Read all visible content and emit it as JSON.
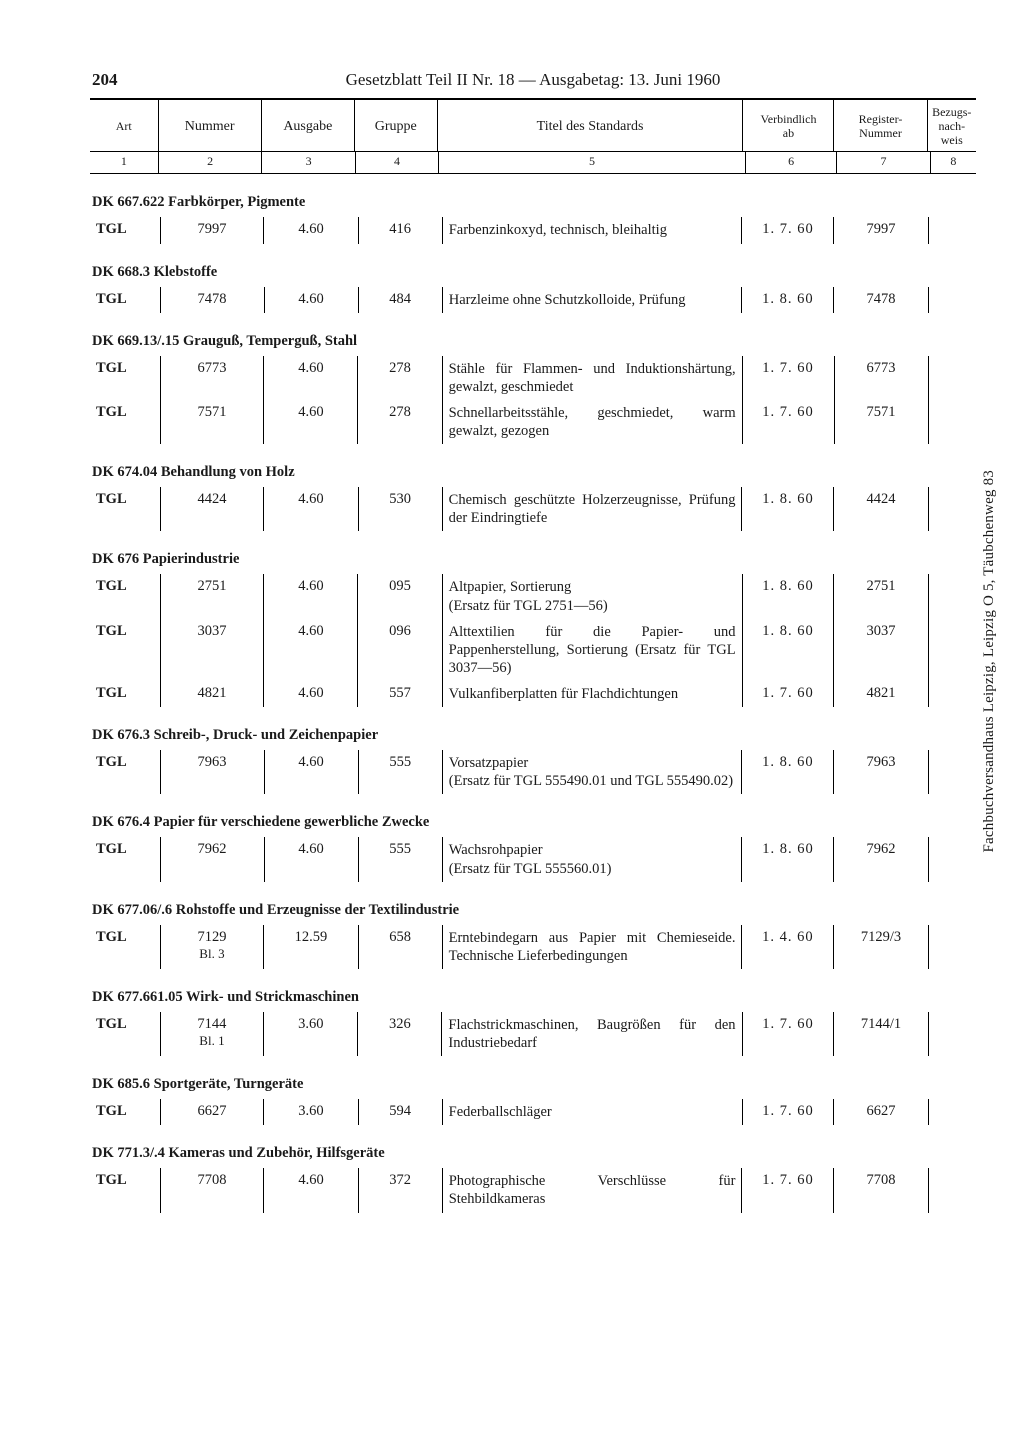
{
  "page_number": "204",
  "header_title": "Gesetzblatt Teil II Nr. 18 — Ausgabetag: 13. Juni 1960",
  "vertical_note": "Fachbuchversandhaus Leipzig, Leipzig O 5, Täubchenweg 83",
  "columns": {
    "heads": [
      "Art",
      "Nummer",
      "Ausgabe",
      "Gruppe",
      "Titel des Standards",
      "Verbindlich\nab",
      "Register-\nNummer",
      "Bezugs-\nnach-\nweis"
    ],
    "nums": [
      "1",
      "2",
      "3",
      "4",
      "5",
      "6",
      "7",
      "8"
    ]
  },
  "sections": [
    {
      "head": "DK 667.622 Farbkörper, Pigmente",
      "rows": [
        {
          "art": "TGL",
          "num": "7997",
          "ausg": "4.60",
          "grp": "416",
          "title": "Farbenzinkoxyd, technisch, bleihaltig",
          "verb": "1. 7. 60",
          "reg": "7997"
        }
      ]
    },
    {
      "head": "DK 668.3 Klebstoffe",
      "rows": [
        {
          "art": "TGL",
          "num": "7478",
          "ausg": "4.60",
          "grp": "484",
          "title": "Harzleime ohne Schutzkolloide, Prüfung",
          "verb": "1. 8. 60",
          "reg": "7478"
        }
      ]
    },
    {
      "head": "DK 669.13/.15 Grauguß, Temperguß, Stahl",
      "rows": [
        {
          "art": "TGL",
          "num": "6773",
          "ausg": "4.60",
          "grp": "278",
          "title": "Stähle für Flammen- und Induktionshärtung, gewalzt, geschmiedet",
          "verb": "1. 7. 60",
          "reg": "6773"
        },
        {
          "art": "TGL",
          "num": "7571",
          "ausg": "4.60",
          "grp": "278",
          "title": "Schnellarbeitsstähle, geschmiedet, warm gewalzt, gezogen",
          "verb": "1. 7. 60",
          "reg": "7571"
        }
      ]
    },
    {
      "head": "DK 674.04 Behandlung von Holz",
      "rows": [
        {
          "art": "TGL",
          "num": "4424",
          "ausg": "4.60",
          "grp": "530",
          "title": "Chemisch geschützte Holzerzeugnisse, Prüfung der Eindringtiefe",
          "verb": "1. 8. 60",
          "reg": "4424"
        }
      ]
    },
    {
      "head": "DK 676 Papierindustrie",
      "rows": [
        {
          "art": "TGL",
          "num": "2751",
          "ausg": "4.60",
          "grp": "095",
          "title": "Altpapier, Sortierung\n(Ersatz für TGL 2751—56)",
          "verb": "1. 8. 60",
          "reg": "2751"
        },
        {
          "art": "TGL",
          "num": "3037",
          "ausg": "4.60",
          "grp": "096",
          "title": "Alttextilien für die Papier- und Pappenherstellung, Sortierung (Ersatz für TGL 3037—56)",
          "verb": "1. 8. 60",
          "reg": "3037"
        },
        {
          "art": "TGL",
          "num": "4821",
          "ausg": "4.60",
          "grp": "557",
          "title": "Vulkanfiberplatten für Flachdichtungen",
          "verb": "1. 7. 60",
          "reg": "4821"
        }
      ]
    },
    {
      "head": "DK 676.3 Schreib-, Druck- und Zeichenpapier",
      "rows": [
        {
          "art": "TGL",
          "num": "7963",
          "ausg": "4.60",
          "grp": "555",
          "title": "Vorsatzpapier\n(Ersatz für TGL 555490.01 und TGL 555490.02)",
          "verb": "1. 8. 60",
          "reg": "7963"
        }
      ]
    },
    {
      "head": "DK 676.4 Papier für verschiedene gewerbliche Zwecke",
      "rows": [
        {
          "art": "TGL",
          "num": "7962",
          "ausg": "4.60",
          "grp": "555",
          "title": "Wachsrohpapier\n(Ersatz für TGL 555560.01)",
          "verb": "1. 8. 60",
          "reg": "7962"
        }
      ]
    },
    {
      "head": "DK 677.06/.6 Rohstoffe und Erzeugnisse der Textilindustrie",
      "rows": [
        {
          "art": "TGL",
          "num": "7129",
          "num_sub": "Bl. 3",
          "ausg": "12.59",
          "grp": "658",
          "title": "Erntebindegarn aus Papier mit Chemieseide. Technische Lieferbedingungen",
          "verb": "1. 4. 60",
          "reg": "7129/3"
        }
      ]
    },
    {
      "head": "DK 677.661.05 Wirk- und Strickmaschinen",
      "rows": [
        {
          "art": "TGL",
          "num": "7144",
          "num_sub": "Bl. 1",
          "ausg": "3.60",
          "grp": "326",
          "title": "Flachstrickmaschinen, Baugrößen für den Industriebedarf",
          "verb": "1. 7. 60",
          "reg": "7144/1"
        }
      ]
    },
    {
      "head": "DK 685.6 Sportgeräte, Turngeräte",
      "rows": [
        {
          "art": "TGL",
          "num": "6627",
          "ausg": "3.60",
          "grp": "594",
          "title": "Federballschläger",
          "verb": "1. 7. 60",
          "reg": "6627"
        }
      ]
    },
    {
      "head": "DK 771.3/.4 Kameras und Zubehör, Hilfsgeräte",
      "rows": [
        {
          "art": "TGL",
          "num": "7708",
          "ausg": "4.60",
          "grp": "372",
          "title": "Photographische Verschlüsse für Stehbildkameras",
          "verb": "1. 7. 60",
          "reg": "7708"
        }
      ]
    }
  ]
}
